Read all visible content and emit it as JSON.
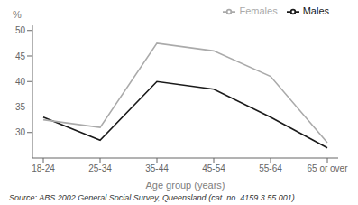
{
  "chart_data": {
    "type": "line",
    "categories": [
      "18-24",
      "25-34",
      "35-44",
      "45-54",
      "55-64",
      "65 or over"
    ],
    "series": [
      {
        "name": "Males",
        "color": "#1a1a1a",
        "values": [
          33.0,
          28.5,
          40.0,
          38.5,
          33.0,
          27.0
        ]
      },
      {
        "name": "Females",
        "color": "#aaaaaa",
        "values": [
          32.5,
          31.0,
          47.5,
          46.0,
          41.0,
          28.0
        ]
      }
    ],
    "xlabel": "Age group (years)",
    "ylabel": "%",
    "ylim": [
      25,
      51
    ],
    "yticks": [
      30,
      35,
      40,
      45,
      50
    ],
    "grid": false,
    "legend": "upper right",
    "annotations": [
      "Source: ABS 2002 General Social Survey, Queensland (cat. no. 4159.3.55.001)."
    ]
  }
}
